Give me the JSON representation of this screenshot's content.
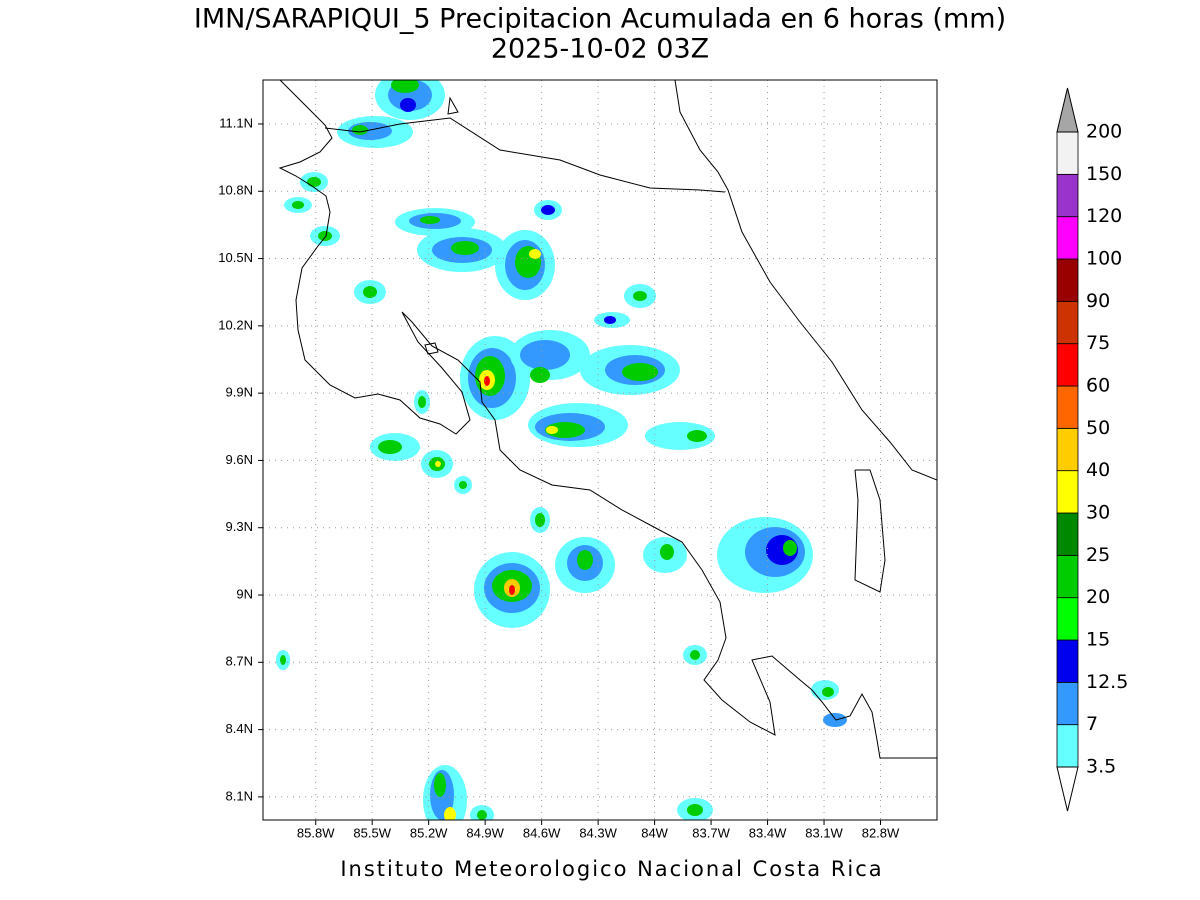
{
  "title": "IMN/SARAPIQUI_5 Precipitacion Acumulada en 6 horas (mm)",
  "subtitle": "2025-10-02 03Z",
  "map": {
    "xlim": [
      -86.08,
      -82.5
    ],
    "ylim": [
      7.997,
      11.296
    ],
    "grid": true,
    "xticks": [
      {
        "value": -85.8,
        "label": "85.8W"
      },
      {
        "value": -85.5,
        "label": "85.5W"
      },
      {
        "value": -85.2,
        "label": "85.2W"
      },
      {
        "value": -84.9,
        "label": "84.9W"
      },
      {
        "value": -84.6,
        "label": "84.6W"
      },
      {
        "value": -84.3,
        "label": "84.3W"
      },
      {
        "value": -84,
        "label": "84W"
      },
      {
        "value": -83.7,
        "label": "83.7W"
      },
      {
        "value": -83.4,
        "label": "83.4W"
      },
      {
        "value": -83.1,
        "label": "83.1W"
      },
      {
        "value": -82.8,
        "label": "82.8W"
      }
    ],
    "yticks": [
      {
        "value": 11.1,
        "label": "11.1N"
      },
      {
        "value": 10.8,
        "label": "10.8N"
      },
      {
        "value": 10.5,
        "label": "10.5N"
      },
      {
        "value": 10.2,
        "label": "10.2N"
      },
      {
        "value": 9.9,
        "label": "9.9N"
      },
      {
        "value": 9.6,
        "label": "9.6N"
      },
      {
        "value": 9.3,
        "label": "9.3N"
      },
      {
        "value": 9,
        "label": "9N"
      },
      {
        "value": 8.7,
        "label": "8.7N"
      },
      {
        "value": 8.4,
        "label": "8.4N"
      },
      {
        "value": 8.1,
        "label": "8.1N"
      }
    ]
  },
  "colorbar": {
    "levels": [
      3.5,
      7,
      12.5,
      15,
      20,
      25,
      30,
      40,
      50,
      60,
      75,
      90,
      100,
      120,
      150,
      200
    ],
    "colors": [
      "#66ffff",
      "#3399ff",
      "#0000ee",
      "#00ff00",
      "#00cc00",
      "#008800",
      "#ffff00",
      "#ffcc00",
      "#ff6600",
      "#ff0000",
      "#cc3300",
      "#990000",
      "#ff00ff",
      "#9933cc",
      "#f2f2f2"
    ],
    "under_color": "#ffffff",
    "over_color": "#a6a6a6"
  },
  "footer": "Instituto Meteorologico Nacional Costa Rica"
}
